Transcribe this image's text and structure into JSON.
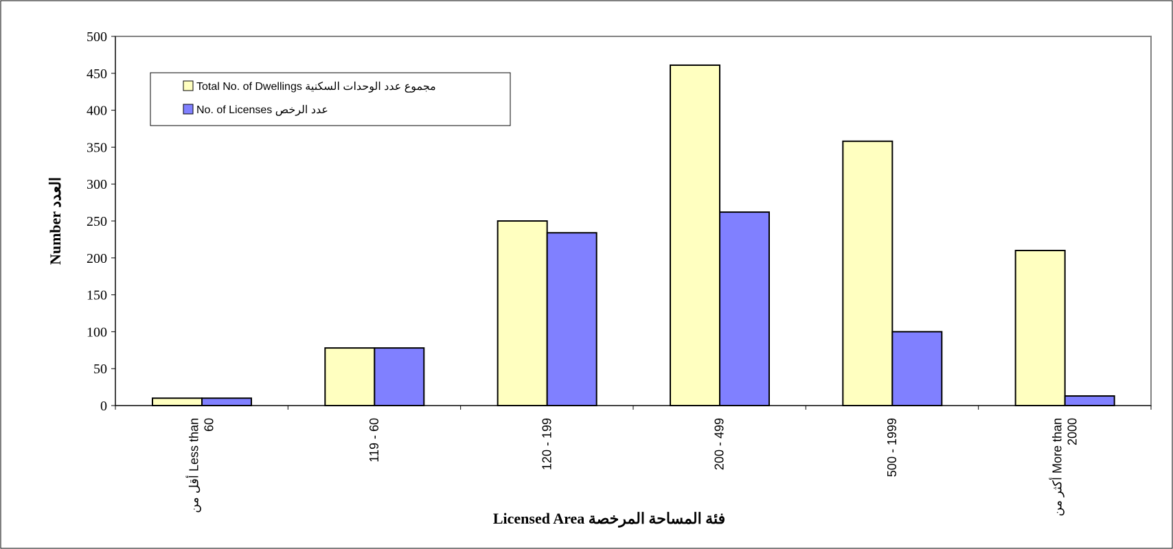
{
  "chart_data": {
    "type": "bar",
    "categories": [
      [
        "أقل من Less than",
        "60"
      ],
      [
        "119   -  60"
      ],
      [
        "120 - 199"
      ],
      [
        "200 - 499"
      ],
      [
        "500 - 1999"
      ],
      [
        "أكثر من More than",
        "2000"
      ]
    ],
    "series": [
      {
        "name": "Total No. of  Dwellings مجموع عدد  الوحدات السكنية",
        "values": [
          10,
          78,
          250,
          461,
          358,
          210
        ],
        "color": "#ffffc0"
      },
      {
        "name": "No. of  Licenses عدد الرخص",
        "values": [
          10,
          78,
          234,
          262,
          100,
          13
        ],
        "color": "#8080ff"
      }
    ],
    "title": "",
    "xlabel": "Licensed Area فئة المساحة المرخصة",
    "ylabel": "Number العدد",
    "ylim": [
      0,
      500
    ],
    "yticks": [
      0,
      50,
      100,
      150,
      200,
      250,
      300,
      350,
      400,
      450,
      500
    ],
    "grid": false,
    "legend_position": "top-left"
  }
}
